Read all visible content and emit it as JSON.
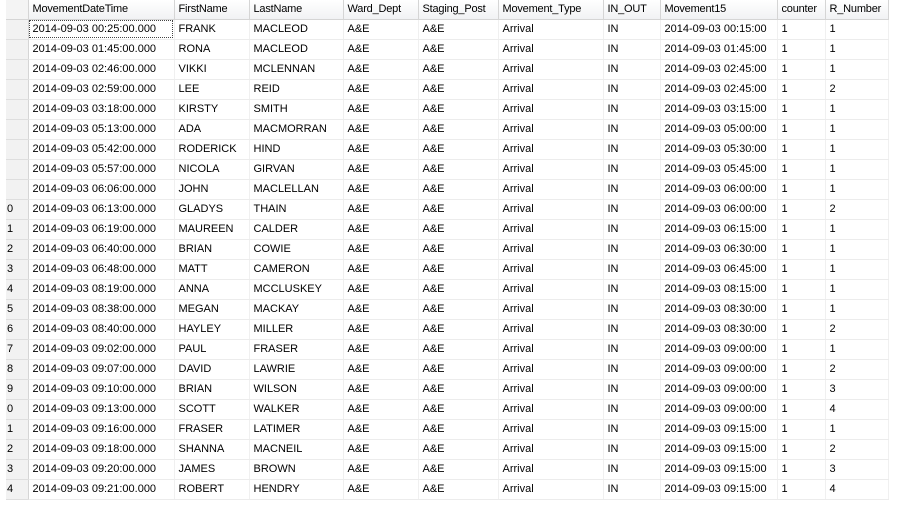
{
  "columns": [
    "",
    "MovementDateTime",
    "FirstName",
    "LastName",
    "Ward_Dept",
    "Staging_Post",
    "Movement_Type",
    "IN_OUT",
    "Movement15",
    "counter",
    "R_Number"
  ],
  "rows": [
    {
      "rownum": "",
      "cells": [
        "2014-09-03 00:25:00.000",
        "FRANK",
        "MACLEOD",
        "A&E",
        "A&E",
        "Arrival",
        "IN",
        "2014-09-03 00:15:00",
        "1",
        "1"
      ]
    },
    {
      "rownum": "",
      "cells": [
        "2014-09-03 01:45:00.000",
        "RONA",
        "MACLEOD",
        "A&E",
        "A&E",
        "Arrival",
        "IN",
        "2014-09-03 01:45:00",
        "1",
        "1"
      ]
    },
    {
      "rownum": "",
      "cells": [
        "2014-09-03 02:46:00.000",
        "VIKKI",
        "MCLENNAN",
        "A&E",
        "A&E",
        "Arrival",
        "IN",
        "2014-09-03 02:45:00",
        "1",
        "1"
      ]
    },
    {
      "rownum": "",
      "cells": [
        "2014-09-03 02:59:00.000",
        "LEE",
        "REID",
        "A&E",
        "A&E",
        "Arrival",
        "IN",
        "2014-09-03 02:45:00",
        "1",
        "2"
      ]
    },
    {
      "rownum": "",
      "cells": [
        "2014-09-03 03:18:00.000",
        "KIRSTY",
        "SMITH",
        "A&E",
        "A&E",
        "Arrival",
        "IN",
        "2014-09-03 03:15:00",
        "1",
        "1"
      ]
    },
    {
      "rownum": "",
      "cells": [
        "2014-09-03 05:13:00.000",
        "ADA",
        "MACMORRAN",
        "A&E",
        "A&E",
        "Arrival",
        "IN",
        "2014-09-03 05:00:00",
        "1",
        "1"
      ]
    },
    {
      "rownum": "",
      "cells": [
        "2014-09-03 05:42:00.000",
        "RODERICK",
        "HIND",
        "A&E",
        "A&E",
        "Arrival",
        "IN",
        "2014-09-03 05:30:00",
        "1",
        "1"
      ]
    },
    {
      "rownum": "",
      "cells": [
        "2014-09-03 05:57:00.000",
        "NICOLA",
        "GIRVAN",
        "A&E",
        "A&E",
        "Arrival",
        "IN",
        "2014-09-03 05:45:00",
        "1",
        "1"
      ]
    },
    {
      "rownum": "",
      "cells": [
        "2014-09-03 06:06:00.000",
        "JOHN",
        "MACLELLAN",
        "A&E",
        "A&E",
        "Arrival",
        "IN",
        "2014-09-03 06:00:00",
        "1",
        "1"
      ]
    },
    {
      "rownum": "0",
      "cells": [
        "2014-09-03 06:13:00.000",
        "GLADYS",
        "THAIN",
        "A&E",
        "A&E",
        "Arrival",
        "IN",
        "2014-09-03 06:00:00",
        "1",
        "2"
      ]
    },
    {
      "rownum": "1",
      "cells": [
        "2014-09-03 06:19:00.000",
        "MAUREEN",
        "CALDER",
        "A&E",
        "A&E",
        "Arrival",
        "IN",
        "2014-09-03 06:15:00",
        "1",
        "1"
      ]
    },
    {
      "rownum": "2",
      "cells": [
        "2014-09-03 06:40:00.000",
        "BRIAN",
        "COWIE",
        "A&E",
        "A&E",
        "Arrival",
        "IN",
        "2014-09-03 06:30:00",
        "1",
        "1"
      ]
    },
    {
      "rownum": "3",
      "cells": [
        "2014-09-03 06:48:00.000",
        "MATT",
        "CAMERON",
        "A&E",
        "A&E",
        "Arrival",
        "IN",
        "2014-09-03 06:45:00",
        "1",
        "1"
      ]
    },
    {
      "rownum": "4",
      "cells": [
        "2014-09-03 08:19:00.000",
        "ANNA",
        "MCCLUSKEY",
        "A&E",
        "A&E",
        "Arrival",
        "IN",
        "2014-09-03 08:15:00",
        "1",
        "1"
      ]
    },
    {
      "rownum": "5",
      "cells": [
        "2014-09-03 08:38:00.000",
        "MEGAN",
        "MACKAY",
        "A&E",
        "A&E",
        "Arrival",
        "IN",
        "2014-09-03 08:30:00",
        "1",
        "1"
      ]
    },
    {
      "rownum": "6",
      "cells": [
        "2014-09-03 08:40:00.000",
        "HAYLEY",
        "MILLER",
        "A&E",
        "A&E",
        "Arrival",
        "IN",
        "2014-09-03 08:30:00",
        "1",
        "2"
      ]
    },
    {
      "rownum": "7",
      "cells": [
        "2014-09-03 09:02:00.000",
        "PAUL",
        "FRASER",
        "A&E",
        "A&E",
        "Arrival",
        "IN",
        "2014-09-03 09:00:00",
        "1",
        "1"
      ]
    },
    {
      "rownum": "8",
      "cells": [
        "2014-09-03 09:07:00.000",
        "DAVID",
        "LAWRIE",
        "A&E",
        "A&E",
        "Arrival",
        "IN",
        "2014-09-03 09:00:00",
        "1",
        "2"
      ]
    },
    {
      "rownum": "9",
      "cells": [
        "2014-09-03 09:10:00.000",
        "BRIAN",
        "WILSON",
        "A&E",
        "A&E",
        "Arrival",
        "IN",
        "2014-09-03 09:00:00",
        "1",
        "3"
      ]
    },
    {
      "rownum": "0",
      "cells": [
        "2014-09-03 09:13:00.000",
        "SCOTT",
        "WALKER",
        "A&E",
        "A&E",
        "Arrival",
        "IN",
        "2014-09-03 09:00:00",
        "1",
        "4"
      ]
    },
    {
      "rownum": "1",
      "cells": [
        "2014-09-03 09:16:00.000",
        "FRASER",
        "LATIMER",
        "A&E",
        "A&E",
        "Arrival",
        "IN",
        "2014-09-03 09:15:00",
        "1",
        "1"
      ]
    },
    {
      "rownum": "2",
      "cells": [
        "2014-09-03 09:18:00.000",
        "SHANNA",
        "MACNEIL",
        "A&E",
        "A&E",
        "Arrival",
        "IN",
        "2014-09-03 09:15:00",
        "1",
        "2"
      ]
    },
    {
      "rownum": "3",
      "cells": [
        "2014-09-03 09:20:00.000",
        "JAMES",
        "BROWN",
        "A&E",
        "A&E",
        "Arrival",
        "IN",
        "2014-09-03 09:15:00",
        "1",
        "3"
      ]
    },
    {
      "rownum": "4",
      "cells": [
        "2014-09-03 09:21:00.000",
        "ROBERT",
        "HENDRY",
        "A&E",
        "A&E",
        "Arrival",
        "IN",
        "2014-09-03 09:15:00",
        "1",
        "4"
      ]
    }
  ]
}
